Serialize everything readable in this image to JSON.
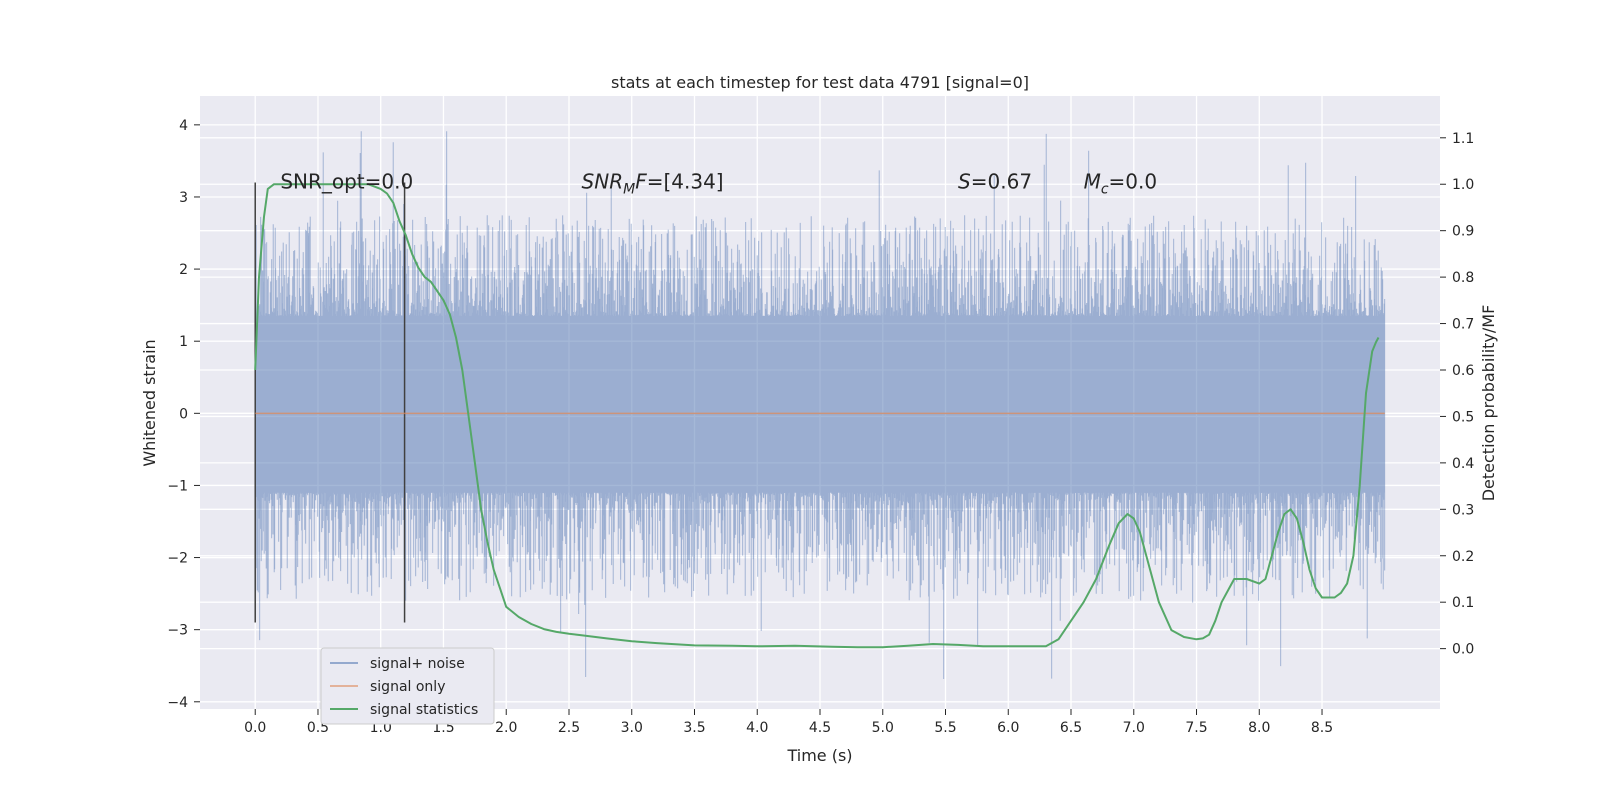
{
  "chart_data": {
    "type": "line",
    "title": "stats at each timestep for test data 4791 [signal=0]",
    "xlabel": "Time (s)",
    "ylabel": "Whitened strain",
    "y2label": "Detection probability/MF",
    "xlim": [
      -0.44,
      9.44
    ],
    "ylim": [
      -4.1,
      4.4
    ],
    "y2lim": [
      -0.13,
      1.19
    ],
    "xticks": [
      "0.0",
      "0.5",
      "1.0",
      "1.5",
      "2.0",
      "2.5",
      "3.0",
      "3.5",
      "4.0",
      "4.5",
      "5.0",
      "5.5",
      "6.0",
      "6.5",
      "7.0",
      "7.5",
      "8.0",
      "8.5"
    ],
    "yticks": [
      "4",
      "3",
      "2",
      "1",
      "0",
      "−1",
      "−2",
      "−3",
      "−4"
    ],
    "y2ticks": [
      "1.1",
      "1.0",
      "0.9",
      "0.8",
      "0.7",
      "0.6",
      "0.5",
      "0.4",
      "0.3",
      "0.2",
      "0.1",
      "0.0"
    ],
    "grid": true,
    "legend_position": "lower-left",
    "colors": {
      "background": "#eaeaf2",
      "grid": "#ffffff",
      "noise": "#4c72b0",
      "signal_only": "#dd8452",
      "statistics": "#55a868",
      "markers": "#404040"
    },
    "series": [
      {
        "name": "signal+ noise",
        "axis": "left",
        "x_range": [
          0.0,
          9.0
        ],
        "core_band": [
          -1.1,
          1.35
        ],
        "spike_max": 4.0,
        "spike_min": -3.7
      },
      {
        "name": "signal only",
        "axis": "left",
        "x": [
          0.0,
          9.0
        ],
        "y": [
          0.0,
          0.0
        ]
      },
      {
        "name": "signal statistics",
        "axis": "right",
        "x": [
          0.0,
          0.03,
          0.07,
          0.1,
          0.15,
          0.2,
          0.3,
          0.5,
          0.7,
          0.9,
          1.0,
          1.05,
          1.1,
          1.15,
          1.2,
          1.25,
          1.3,
          1.35,
          1.4,
          1.45,
          1.5,
          1.55,
          1.6,
          1.65,
          1.7,
          1.75,
          1.8,
          1.85,
          1.9,
          1.95,
          2.0,
          2.1,
          2.2,
          2.3,
          2.4,
          2.5,
          2.6,
          2.8,
          3.0,
          3.2,
          3.5,
          3.8,
          4.0,
          4.3,
          4.6,
          4.8,
          5.0,
          5.2,
          5.4,
          5.6,
          5.8,
          6.0,
          6.2,
          6.3,
          6.4,
          6.5,
          6.6,
          6.7,
          6.8,
          6.88,
          6.95,
          7.0,
          7.05,
          7.1,
          7.2,
          7.3,
          7.4,
          7.5,
          7.55,
          7.6,
          7.65,
          7.7,
          7.8,
          7.9,
          8.0,
          8.05,
          8.1,
          8.15,
          8.2,
          8.25,
          8.3,
          8.35,
          8.4,
          8.45,
          8.5,
          8.55,
          8.6,
          8.65,
          8.7,
          8.75,
          8.8,
          8.85,
          8.9,
          8.93,
          8.95
        ],
        "y": [
          0.6,
          0.8,
          0.93,
          0.99,
          1.0,
          1.0,
          1.0,
          1.0,
          1.0,
          1.0,
          0.99,
          0.98,
          0.96,
          0.92,
          0.89,
          0.85,
          0.82,
          0.8,
          0.79,
          0.77,
          0.75,
          0.72,
          0.67,
          0.6,
          0.5,
          0.4,
          0.3,
          0.23,
          0.17,
          0.13,
          0.09,
          0.068,
          0.053,
          0.042,
          0.036,
          0.032,
          0.029,
          0.022,
          0.016,
          0.012,
          0.007,
          0.006,
          0.005,
          0.006,
          0.004,
          0.003,
          0.003,
          0.006,
          0.01,
          0.008,
          0.005,
          0.005,
          0.005,
          0.005,
          0.02,
          0.06,
          0.1,
          0.15,
          0.22,
          0.27,
          0.29,
          0.28,
          0.25,
          0.2,
          0.1,
          0.04,
          0.025,
          0.02,
          0.022,
          0.03,
          0.06,
          0.1,
          0.15,
          0.15,
          0.14,
          0.15,
          0.2,
          0.25,
          0.29,
          0.3,
          0.28,
          0.23,
          0.17,
          0.13,
          0.11,
          0.11,
          0.11,
          0.12,
          0.14,
          0.2,
          0.35,
          0.55,
          0.64,
          0.66,
          0.67
        ]
      }
    ],
    "vertical_markers": [
      0.0,
      1.19
    ],
    "annotations": [
      {
        "x": 0.2,
        "text_plain": "SNR_opt=0.0"
      },
      {
        "x": 2.6,
        "sym": "SNR",
        "sub": "M",
        "sym2": "F",
        "rest": "=[4.34]"
      },
      {
        "x": 5.6,
        "sym": "S",
        "rest": "=0.67"
      },
      {
        "x": 6.6,
        "sym": "M",
        "sub": "c",
        "rest": "=0.0"
      }
    ]
  }
}
